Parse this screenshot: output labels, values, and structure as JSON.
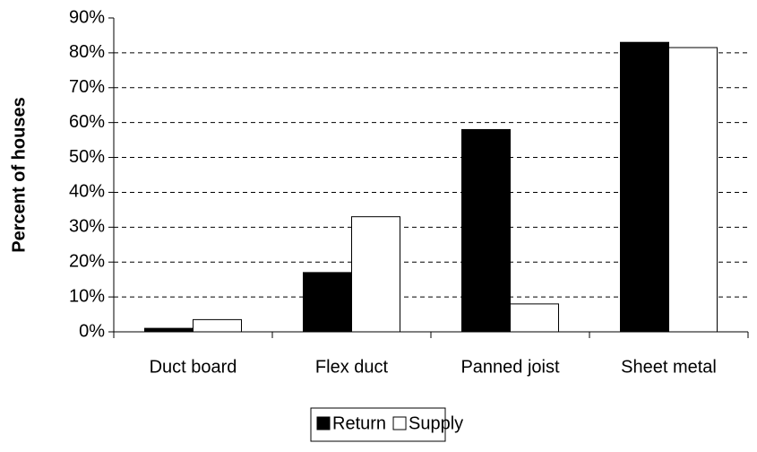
{
  "chart_data": {
    "type": "bar",
    "y_label": "Percent of houses",
    "categories": [
      "Duct board",
      "Flex duct",
      "Panned joist",
      "Sheet metal"
    ],
    "series": [
      {
        "name": "Return",
        "color": "#000000",
        "values": [
          1,
          17,
          58,
          83
        ]
      },
      {
        "name": "Supply",
        "color": "#ffffff",
        "values": [
          3.5,
          33,
          8,
          81.5
        ]
      }
    ],
    "ylim": [
      0,
      90
    ],
    "yticks": [
      {
        "value": 0,
        "label": "0%"
      },
      {
        "value": 10,
        "label": "10%"
      },
      {
        "value": 20,
        "label": "20%"
      },
      {
        "value": 30,
        "label": "30%"
      },
      {
        "value": 40,
        "label": "40%"
      },
      {
        "value": 50,
        "label": "50%"
      },
      {
        "value": 60,
        "label": "60%"
      },
      {
        "value": 70,
        "label": "70%"
      },
      {
        "value": 80,
        "label": "80%"
      },
      {
        "value": 90,
        "label": "90%"
      }
    ],
    "grid": true,
    "legend": "bottom"
  }
}
